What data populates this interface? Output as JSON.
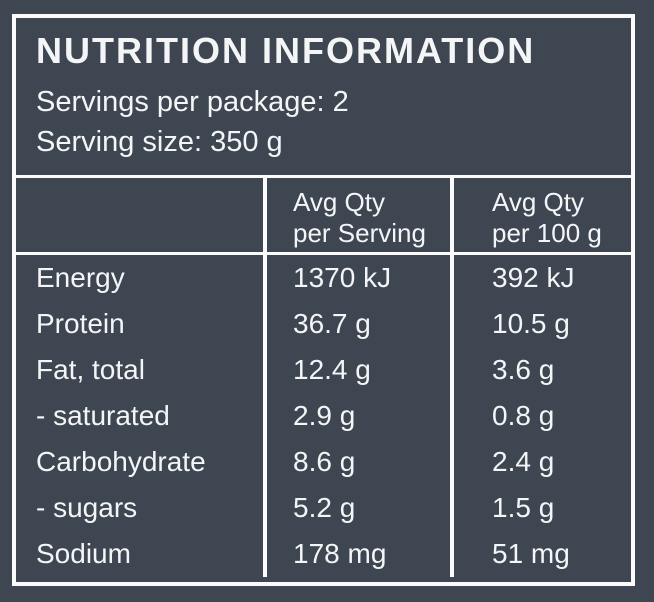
{
  "colors": {
    "background": "#3d4651",
    "text": "#f4f5f6",
    "rules": "#fbfbfb"
  },
  "panel": {
    "title": "NUTRITION INFORMATION",
    "servings_per_package": "Servings per package: 2",
    "serving_size": "Serving size: 350 g"
  },
  "table": {
    "header": {
      "nutrient": "",
      "per_serving": "Avg Qty\nper Serving",
      "per_100g": "Avg Qty\nper 100 g"
    },
    "rows": [
      {
        "label": "Energy",
        "per_serving": "1370 kJ",
        "per_100g": "392 kJ"
      },
      {
        "label": "Protein",
        "per_serving": "36.7 g",
        "per_100g": "10.5 g"
      },
      {
        "label": "Fat, total",
        "per_serving": "12.4 g",
        "per_100g": "3.6 g"
      },
      {
        "label": "- saturated",
        "per_serving": "2.9 g",
        "per_100g": "0.8 g"
      },
      {
        "label": "Carbohydrate",
        "per_serving": "8.6 g",
        "per_100g": "2.4 g"
      },
      {
        "label": "- sugars",
        "per_serving": "5.2 g",
        "per_100g": "1.5 g"
      },
      {
        "label": "Sodium",
        "per_serving": "178 mg",
        "per_100g": "51 mg"
      }
    ]
  }
}
